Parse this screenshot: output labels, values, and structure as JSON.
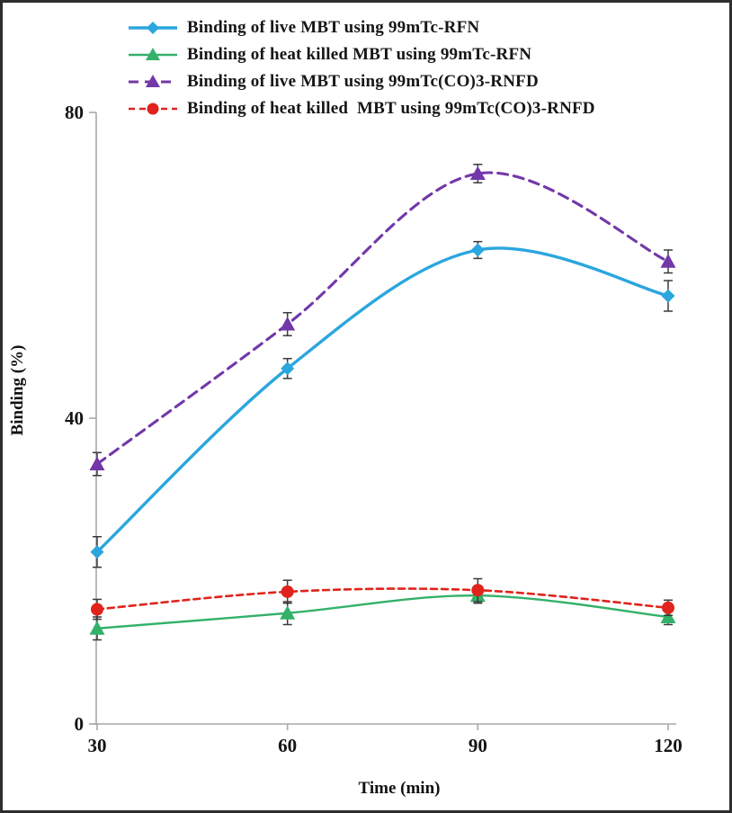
{
  "chart_data": {
    "type": "line",
    "title": "",
    "xlabel": "Time (min)",
    "ylabel": "Binding (%)",
    "x": [
      30,
      60,
      90,
      120
    ],
    "xticks": [
      30,
      60,
      90,
      120
    ],
    "yticks": [
      0,
      40,
      80
    ],
    "xlim": [
      30,
      120
    ],
    "ylim": [
      0,
      80
    ],
    "grid": false,
    "legend_position": "top-left",
    "axis_color": "#a8a8a8",
    "error_bar_color": "#3a3a3a",
    "series": [
      {
        "name": "Binding of live MBT using 99mTc-RFN",
        "values": [
          22.5,
          46.5,
          62,
          56
        ],
        "err": [
          2,
          1.3,
          1.1,
          2
        ],
        "color": "#2ba6de",
        "marker": "diamond",
        "dash": "solid"
      },
      {
        "name": "Binding of heat killed MBT using 99mTc-RFN",
        "values": [
          12.5,
          14.5,
          16.8,
          14
        ],
        "err": [
          1.5,
          1.5,
          1,
          1
        ],
        "color": "#33b169",
        "marker": "triangle",
        "dash": "solid"
      },
      {
        "name": "Binding of live MBT using 99mTc(CO)3-RNFD",
        "values": [
          34,
          52.3,
          72,
          60.5
        ],
        "err": [
          1.5,
          1.5,
          1.2,
          1.5
        ],
        "color": "#7238a8",
        "marker": "triangle",
        "dash": "dashed"
      },
      {
        "name": "Binding of heat killed  MBT using 99mTc(CO)3-RNFD",
        "values": [
          15,
          17.3,
          17.5,
          15.2
        ],
        "err": [
          1.3,
          1.5,
          1.5,
          1
        ],
        "color": "#e0231c",
        "marker": "circle",
        "dash": "dashed"
      }
    ]
  }
}
